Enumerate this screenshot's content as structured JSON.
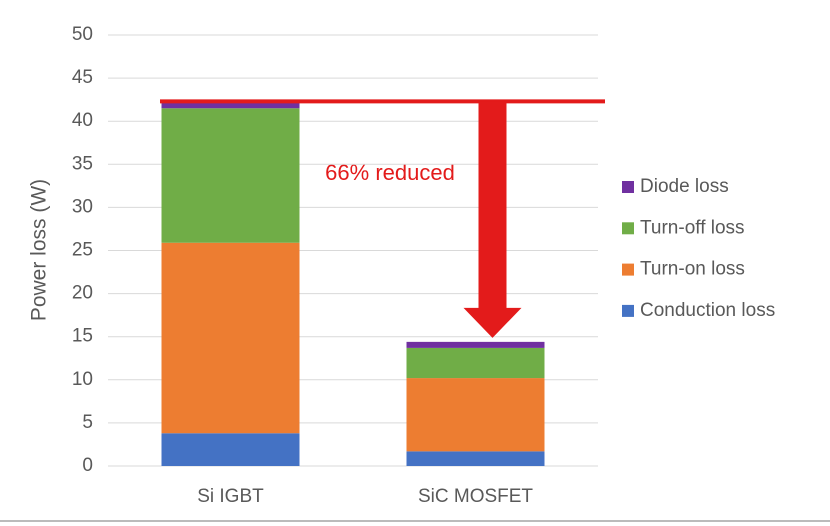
{
  "chart_data": {
    "type": "stacked_bar",
    "categories": [
      "Si IGBT",
      "SiC MOSFET"
    ],
    "series": [
      {
        "name": "Conduction loss",
        "color": "#4472c4",
        "values": [
          3.8,
          1.7
        ]
      },
      {
        "name": "Turn-on loss",
        "color": "#ed7d31",
        "values": [
          22.1,
          8.5
        ]
      },
      {
        "name": "Turn-off loss",
        "color": "#70ad47",
        "values": [
          15.6,
          3.5
        ]
      },
      {
        "name": "Diode loss",
        "color": "#7030a0",
        "values": [
          0.8,
          0.7
        ]
      }
    ],
    "y_label": "Power loss (W)",
    "annotation": "66% reduced",
    "ylim": [
      0,
      50
    ],
    "yticks": [
      0,
      5,
      10,
      15,
      20,
      25,
      30,
      35,
      40,
      45,
      50
    ],
    "grid": true
  }
}
